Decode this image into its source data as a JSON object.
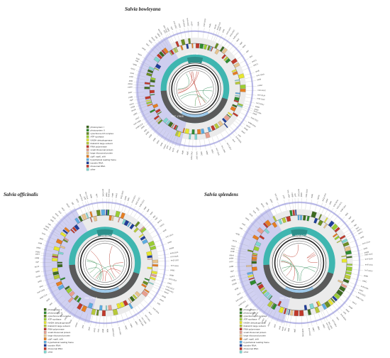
{
  "maps": [
    {
      "title": "Salvia bowleyana",
      "regions": {
        "lsc": "LSC 84736",
        "ssc": "SSC 17618"
      }
    },
    {
      "title": "Salvia officinalis",
      "regions": {
        "lsc": "LSC 84738",
        "ssc": "SSC 17618"
      }
    },
    {
      "title": "Salvia splendens",
      "regions": {
        "lsc": "LSC 84722",
        "ssc": "SSC 17647"
      }
    }
  ],
  "legend": [
    {
      "label": "photosystem I",
      "color": "#3d6b1f"
    },
    {
      "label": "photosystem II",
      "color": "#2e8b2e"
    },
    {
      "label": "cytochrome b/f complex",
      "color": "#6b8e23"
    },
    {
      "label": "ATP synthase",
      "color": "#9acd32"
    },
    {
      "label": "NADH dehydrogenase",
      "color": "#e6e62e"
    },
    {
      "label": "RubisCO large subunit",
      "color": "#b7c93a"
    },
    {
      "label": "RNA polymerase",
      "color": "#c0392b"
    },
    {
      "label": "small ribosomal protein",
      "color": "#e89e8e"
    },
    {
      "label": "large ribosomal protein",
      "color": "#e8c48e"
    },
    {
      "label": "clpP, matK, infA",
      "color": "#e67e22"
    },
    {
      "label": "hypothetical reading frame",
      "color": "#5dade2"
    },
    {
      "label": "transfer RNA",
      "color": "#1f3d99"
    },
    {
      "label": "ribosomal RNA",
      "color": "#c0392b"
    },
    {
      "label": "other",
      "color": "#7fd6d0"
    }
  ],
  "gene_labels": [
    "psbA",
    "trnK-UUU",
    "matK",
    "rps16",
    "trnQ-UUG",
    "psbK",
    "psbI",
    "trnS-GCU",
    "trnG-UCC",
    "trnR-UCU",
    "atpA",
    "atpF",
    "atpH",
    "atpI",
    "rps2",
    "rpoC2",
    "rpoC1",
    "rpoB",
    "trnC-GCA",
    "petN",
    "psbM",
    "trnD-GUC",
    "trnY-GUA",
    "trnE-UUC",
    "trnT-GGU",
    "psbD",
    "psbC",
    "trnS-UGA",
    "psbZ",
    "trnG-GCC",
    "trnfM-CAU",
    "rps14",
    "psaB",
    "psaA",
    "ycf3",
    "trnS-GGA",
    "rps4",
    "trnT-UGU",
    "trnL-UAA",
    "trnF-GAA",
    "ndhJ",
    "ndhK",
    "ndhC",
    "trnV-UAC",
    "trnM-CAU",
    "atpE",
    "atpB",
    "rbcL",
    "accD",
    "psaI",
    "ycf4",
    "cemA",
    "petA",
    "psbJ",
    "psbL",
    "psbF",
    "psbE",
    "petL",
    "petG",
    "trnW-CCA",
    "trnP-UGG",
    "psaJ",
    "rpl33",
    "rps18",
    "rpl20",
    "rps12",
    "clpP",
    "psbB",
    "psbT",
    "psbN",
    "psbH",
    "petB",
    "petD",
    "rpoA",
    "rps11",
    "rpl36",
    "infA",
    "rps8",
    "rpl14",
    "rpl16",
    "rps3",
    "rpl22",
    "rps19",
    "rpl2",
    "rpl23",
    "trnI-CAU",
    "ycf2",
    "trnL-CAA",
    "ndhB",
    "rps7",
    "trnV-GAC",
    "rrn16",
    "trnI-GAU",
    "trnA-UGC",
    "rrn23",
    "rrn4.5",
    "rrn5",
    "trnR-ACG",
    "trnN-GUU",
    "ndhF",
    "rpl32",
    "trnL-UAG",
    "ccsA",
    "ndhD",
    "psaC",
    "ndhE",
    "ndhG",
    "ndhI",
    "ndhA",
    "ndhH",
    "rps15",
    "ycf1"
  ]
}
